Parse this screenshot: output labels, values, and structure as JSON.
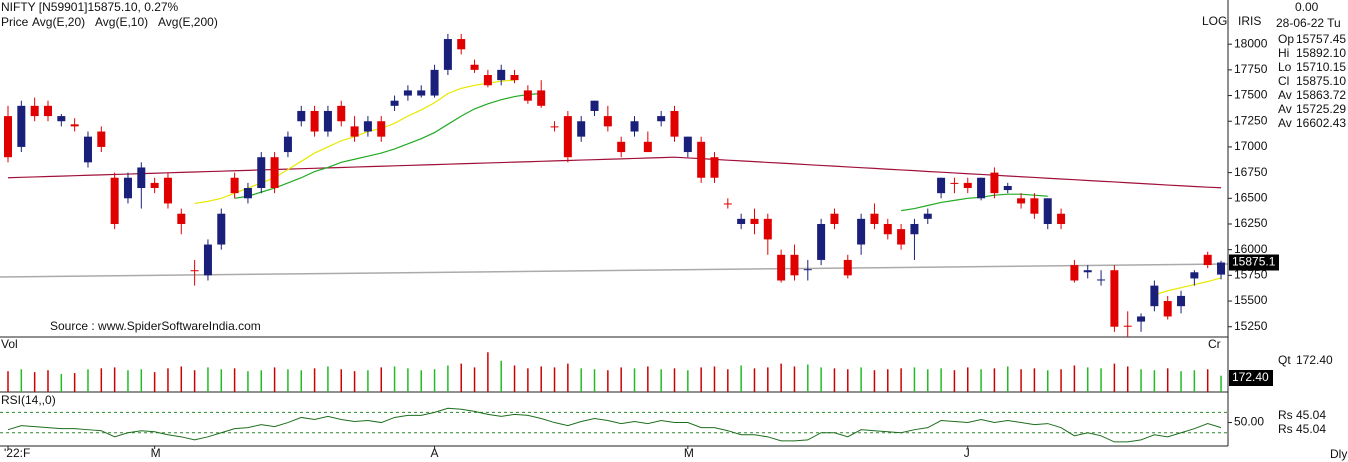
{
  "header": {
    "legend_label": "Price",
    "periodicity": "Dly"
  },
  "info_panel": {
    "change": "0.00",
    "date": "28-06-22 Tu",
    "rows": [
      {
        "label": "Op",
        "value": "15757.45",
        "color": "#000000"
      },
      {
        "label": "Hi",
        "value": "15892.10",
        "color": "#cc0000"
      },
      {
        "label": "Lo",
        "value": "15710.15",
        "color": "#bbbbbb"
      },
      {
        "label": "Cl",
        "value": "15875.10",
        "color": "#cc00cc"
      },
      {
        "label": "Av",
        "value": "15863.72",
        "color": "#22aa22"
      },
      {
        "label": "Av",
        "value": "15725.29",
        "color": "#cccc00"
      },
      {
        "label": "Av",
        "value": "16602.43",
        "color": "#cc00cc"
      }
    ],
    "lower_rows": [
      {
        "label": "Qt",
        "value": "172.40",
        "color": "#22aa22"
      },
      {
        "label": "Rs",
        "value": "45.04",
        "color": "#000000"
      },
      {
        "label": "Rs",
        "value": "45.04",
        "color": "#000000"
      }
    ]
  },
  "chart_data": [
    {
      "type": "candlestick",
      "title": "NIFTY [N59901]15875.10,  0.27%",
      "name": "Price",
      "scale_label": "LOG",
      "corner_label": "IRIS",
      "source": "Source : www.SpiderSoftwareIndia.com",
      "last_label": "15875.1",
      "up_color": "#1a1f7a",
      "down_color": "#e00000",
      "categories": [
        "'22:F",
        null,
        null,
        null,
        null,
        null,
        null,
        null,
        null,
        null,
        null,
        "M",
        null,
        null,
        null,
        null,
        null,
        null,
        null,
        null,
        null,
        null,
        null,
        null,
        null,
        null,
        null,
        null,
        null,
        null,
        null,
        null,
        "A",
        null,
        null,
        null,
        null,
        null,
        null,
        null,
        null,
        null,
        null,
        null,
        null,
        null,
        null,
        null,
        null,
        null,
        null,
        "M",
        null,
        null,
        null,
        null,
        null,
        null,
        null,
        null,
        null,
        null,
        null,
        null,
        null,
        null,
        null,
        null,
        null,
        null,
        null,
        null,
        "J",
        null,
        null,
        null,
        null,
        null,
        null,
        null,
        null,
        null,
        null,
        null,
        null,
        null,
        null,
        null,
        null,
        null,
        null,
        null
      ],
      "open": [
        17300,
        17000,
        17400,
        17400,
        17250,
        17220,
        16850,
        17150,
        16700,
        16500,
        16600,
        16650,
        16700,
        16350,
        15800,
        15750,
        16050,
        16700,
        16500,
        16600,
        16900,
        16950,
        17250,
        17350,
        17150,
        17400,
        17200,
        17150,
        17250,
        17400,
        17500,
        17500,
        17500,
        17750,
        18050,
        17800,
        17700,
        17650,
        17700,
        17550,
        17550,
        17200,
        17300,
        17100,
        17350,
        17300,
        17050,
        17150,
        17050,
        17250,
        17350,
        16950,
        17050,
        16900,
        16450,
        16250,
        16300,
        16300,
        15950,
        15950,
        15800,
        15900,
        16350,
        15900,
        16050,
        16350,
        16250,
        16200,
        16150,
        16300,
        16550,
        16650,
        16650,
        16500,
        16750,
        16580,
        16500,
        16500,
        16250,
        16350,
        15850,
        15780,
        15700,
        15800,
        15260,
        15300,
        15450,
        15500,
        15450,
        15720,
        15950,
        15757.45
      ],
      "high": [
        17400,
        17450,
        17480,
        17450,
        17320,
        17280,
        17150,
        17200,
        16750,
        16750,
        16850,
        16700,
        16750,
        16400,
        15900,
        16100,
        16400,
        16750,
        16650,
        16950,
        16950,
        17150,
        17400,
        17400,
        17400,
        17450,
        17300,
        17300,
        17300,
        17500,
        17600,
        17600,
        17800,
        18100,
        18100,
        17850,
        17750,
        17800,
        17750,
        17600,
        17650,
        17250,
        17350,
        17300,
        17450,
        17400,
        17100,
        17300,
        17150,
        17350,
        17400,
        17100,
        17100,
        16950,
        16500,
        16350,
        16400,
        16350,
        16000,
        16050,
        15900,
        16300,
        16400,
        15950,
        16350,
        16450,
        16300,
        16250,
        16300,
        16400,
        16700,
        16700,
        16700,
        16700,
        16800,
        16650,
        16550,
        16550,
        16500,
        16400,
        15900,
        15850,
        15800,
        15850,
        15400,
        15380,
        15700,
        15550,
        15600,
        15800,
        15980,
        15892.1
      ],
      "low": [
        16850,
        16950,
        17250,
        17250,
        17200,
        17150,
        16800,
        16950,
        16200,
        16450,
        16400,
        16550,
        16400,
        16150,
        15650,
        15700,
        16000,
        16500,
        16450,
        16550,
        16550,
        16900,
        17200,
        17100,
        17100,
        17200,
        17050,
        17100,
        17050,
        17350,
        17450,
        17480,
        17480,
        17700,
        17900,
        17720,
        17580,
        17600,
        17620,
        17420,
        17380,
        17150,
        16850,
        17050,
        17300,
        17150,
        16900,
        17100,
        16950,
        17200,
        17050,
        16900,
        16650,
        16650,
        16400,
        16200,
        16150,
        15950,
        15680,
        15700,
        15700,
        15850,
        16200,
        15720,
        15950,
        16200,
        16100,
        16000,
        15900,
        16250,
        16500,
        16550,
        16550,
        16480,
        16500,
        16550,
        16400,
        16300,
        16200,
        16200,
        15680,
        15720,
        15650,
        15200,
        15150,
        15200,
        15400,
        15320,
        15380,
        15650,
        15820,
        15710.15
      ],
      "close": [
        16900,
        17400,
        17300,
        17300,
        17300,
        17200,
        17100,
        17000,
        16250,
        16700,
        16800,
        16600,
        16450,
        16250,
        15790,
        16050,
        16350,
        16550,
        16600,
        16900,
        16600,
        17100,
        17350,
        17150,
        17350,
        17250,
        17100,
        17250,
        17100,
        17450,
        17550,
        17550,
        17750,
        18050,
        17950,
        17750,
        17600,
        17750,
        17650,
        17450,
        17400,
        17190,
        16900,
        17250,
        17450,
        17200,
        16950,
        17250,
        16950,
        17300,
        17100,
        17100,
        16700,
        16700,
        16440,
        16300,
        16250,
        16100,
        15700,
        15750,
        15810,
        16250,
        16250,
        15750,
        16300,
        16250,
        16150,
        16050,
        16250,
        16350,
        16700,
        16640,
        16600,
        16700,
        16550,
        16620,
        16450,
        16350,
        16500,
        16250,
        15700,
        15800,
        15710,
        15250,
        15250,
        15350,
        15650,
        15350,
        15550,
        15780,
        15850,
        15875.1
      ],
      "series": [
        {
          "name": "Avg(E,20)",
          "color": "#22aa22",
          "values": [
            null,
            null,
            null,
            null,
            null,
            null,
            null,
            null,
            null,
            null,
            null,
            null,
            null,
            null,
            null,
            null,
            null,
            16500,
            16520,
            16560,
            16600,
            16650,
            16700,
            16760,
            16800,
            16850,
            16880,
            16910,
            16940,
            16980,
            17030,
            17080,
            17140,
            17220,
            17300,
            17370,
            17420,
            17460,
            17490,
            17510,
            17520,
            null,
            null,
            null,
            null,
            null,
            null,
            null,
            null,
            null,
            null,
            null,
            null,
            null,
            null,
            null,
            null,
            null,
            null,
            null,
            null,
            null,
            null,
            null,
            null,
            null,
            null,
            16380,
            16400,
            16430,
            16460,
            16480,
            16500,
            16510,
            16530,
            16540,
            16540,
            16530,
            16520,
            null,
            null,
            null,
            null,
            null,
            null,
            null,
            null,
            null,
            null,
            null,
            null,
            null
          ]
        },
        {
          "name": "Avg(E,10)",
          "color": "#e8e800",
          "values": [
            null,
            null,
            null,
            null,
            null,
            null,
            null,
            null,
            null,
            null,
            null,
            null,
            null,
            null,
            16450,
            16470,
            16500,
            16550,
            16600,
            16650,
            16700,
            16780,
            16860,
            16940,
            17000,
            17060,
            17100,
            17150,
            17180,
            17230,
            17300,
            17360,
            17430,
            17520,
            17570,
            17600,
            17620,
            17640,
            17650,
            null,
            null,
            null,
            null,
            null,
            null,
            null,
            null,
            null,
            null,
            null,
            null,
            null,
            null,
            null,
            null,
            null,
            null,
            null,
            null,
            null,
            null,
            null,
            null,
            null,
            null,
            null,
            null,
            null,
            null,
            null,
            null,
            null,
            null,
            null,
            null,
            null,
            null,
            null,
            null,
            null,
            null,
            null,
            null,
            null,
            null,
            null,
            15560,
            15600,
            15630,
            15660,
            15690,
            15725.29
          ]
        },
        {
          "name": "Avg(E,200)",
          "color": "#a0103a",
          "values": [
            16700,
            16704,
            16708,
            16712,
            16716,
            16720,
            16724,
            16728,
            16732,
            16736,
            16740,
            16744,
            16748,
            16752,
            16756,
            16760,
            16764,
            16768,
            16772,
            16776,
            16780,
            16784,
            16788,
            16792,
            16796,
            16800,
            16804,
            16808,
            16812,
            16816,
            16820,
            16824,
            16828,
            16832,
            16836,
            16840,
            16844,
            16848,
            16852,
            16856,
            16860,
            16864,
            16868,
            16872,
            16876,
            16880,
            16884,
            16888,
            16892,
            16896,
            16900,
            16893,
            16886,
            16879,
            16871,
            16864,
            16857,
            16849,
            16842,
            16835,
            16827,
            16820,
            16813,
            16805,
            16798,
            16791,
            16783,
            16776,
            16769,
            16761,
            16754,
            16747,
            16739,
            16732,
            16725,
            16717,
            16710,
            16703,
            16695,
            16688,
            16681,
            16673,
            16666,
            16659,
            16651,
            16644,
            16637,
            16629,
            16622,
            16615,
            16608,
            16602.43
          ]
        }
      ],
      "ylim": [
        15150,
        18430
      ],
      "yticks": [
        15250,
        15500,
        15750,
        16000,
        16250,
        16500,
        16750,
        17000,
        17250,
        17500,
        17750,
        18000
      ]
    },
    {
      "type": "bar",
      "label": "Vol",
      "corner_label": "Cr",
      "last_label": "172.40",
      "up_color": "#22bb22",
      "down_color": "#cc0000",
      "values": [
        220,
        240,
        210,
        230,
        190,
        200,
        240,
        250,
        260,
        230,
        240,
        210,
        250,
        270,
        230,
        260,
        240,
        250,
        220,
        230,
        260,
        240,
        230,
        250,
        270,
        240,
        220,
        230,
        260,
        270,
        250,
        230,
        240,
        280,
        300,
        260,
        420,
        330,
        280,
        250,
        270,
        260,
        300,
        250,
        240,
        230,
        260,
        250,
        270,
        240,
        250,
        230,
        260,
        270,
        240,
        280,
        250,
        260,
        300,
        270,
        290,
        260,
        250,
        240,
        260,
        230,
        240,
        250,
        260,
        240,
        250,
        230,
        260,
        240,
        250,
        270,
        240,
        250,
        230,
        240,
        280,
        260,
        250,
        300,
        270,
        240,
        230,
        250,
        220,
        230,
        240,
        172.4
      ],
      "ylim": [
        0,
        560
      ]
    },
    {
      "type": "line",
      "label": "RSI(14,,0)",
      "color": "#1e6e1e",
      "values": [
        43,
        47,
        46,
        45,
        44,
        44,
        43,
        42,
        36,
        40,
        42,
        41,
        38,
        36,
        33,
        36,
        40,
        44,
        45,
        48,
        46,
        50,
        55,
        53,
        56,
        53,
        51,
        52,
        50,
        55,
        57,
        57,
        60,
        64,
        63,
        61,
        58,
        56,
        58,
        57,
        54,
        50,
        47,
        51,
        54,
        52,
        49,
        51,
        49,
        52,
        50,
        50,
        45,
        45,
        42,
        38,
        38,
        36,
        32,
        32,
        33,
        40,
        40,
        36,
        43,
        42,
        41,
        40,
        43,
        45,
        52,
        51,
        50,
        53,
        50,
        52,
        50,
        48,
        49,
        45,
        37,
        40,
        37,
        31,
        31,
        33,
        38,
        36,
        40,
        44,
        49,
        45.04
      ],
      "guides": [
        40,
        60
      ],
      "ylim": [
        27,
        78
      ],
      "yticks": [
        {
          "value": 50,
          "label": "50.00"
        }
      ]
    }
  ]
}
